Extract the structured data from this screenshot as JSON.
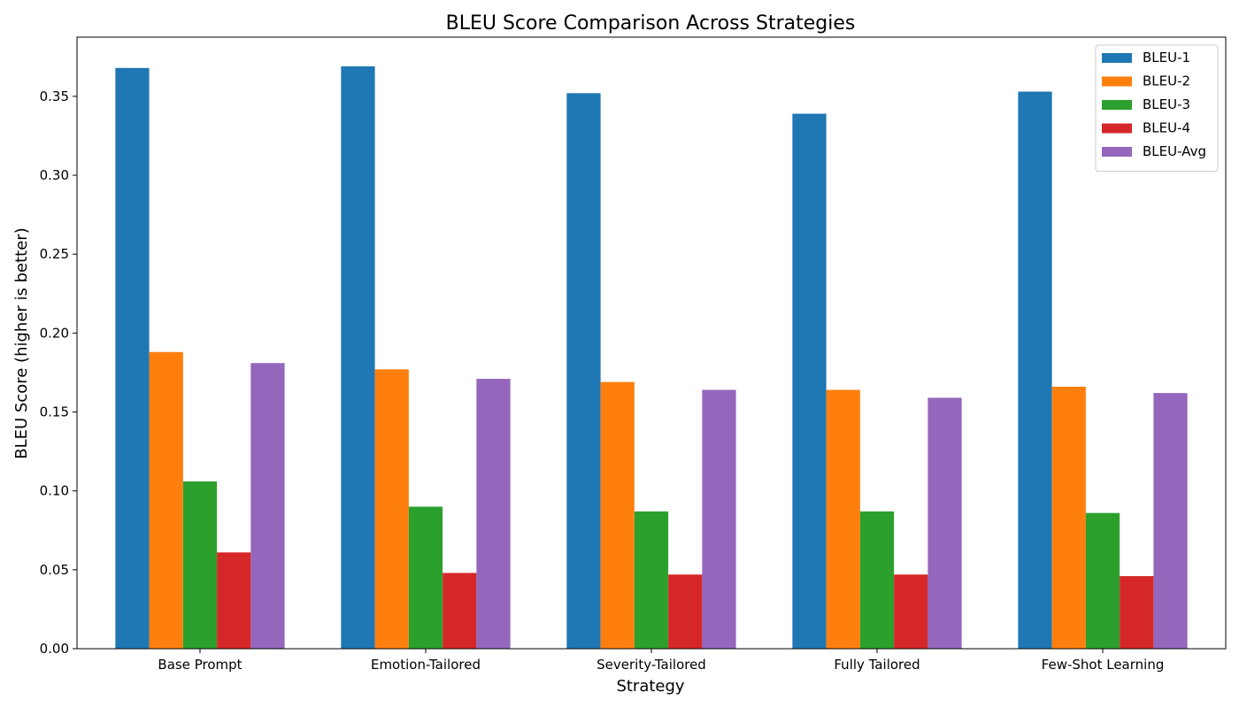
{
  "chart_data": {
    "type": "bar",
    "title": "BLEU Score Comparison Across Strategies",
    "xlabel": "Strategy",
    "ylabel": "BLEU Score (higher is better)",
    "categories": [
      "Base Prompt",
      "Emotion-Tailored",
      "Severity-Tailored",
      "Fully Tailored",
      "Few-Shot Learning"
    ],
    "ylim": [
      0,
      0.3875
    ],
    "yticks": [
      "0.00",
      "0.05",
      "0.10",
      "0.15",
      "0.20",
      "0.25",
      "0.30",
      "0.35"
    ],
    "legend_position": "top-right",
    "grid": false,
    "series": [
      {
        "name": "BLEU-1",
        "color": "#1f77b4",
        "values": [
          0.368,
          0.369,
          0.352,
          0.339,
          0.353
        ]
      },
      {
        "name": "BLEU-2",
        "color": "#ff7f0e",
        "values": [
          0.188,
          0.177,
          0.169,
          0.164,
          0.166
        ]
      },
      {
        "name": "BLEU-3",
        "color": "#2ca02c",
        "values": [
          0.106,
          0.09,
          0.087,
          0.087,
          0.086
        ]
      },
      {
        "name": "BLEU-4",
        "color": "#d62728",
        "values": [
          0.061,
          0.048,
          0.047,
          0.047,
          0.046
        ]
      },
      {
        "name": "BLEU-Avg",
        "color": "#9467bd",
        "values": [
          0.181,
          0.171,
          0.164,
          0.159,
          0.162
        ]
      }
    ]
  }
}
